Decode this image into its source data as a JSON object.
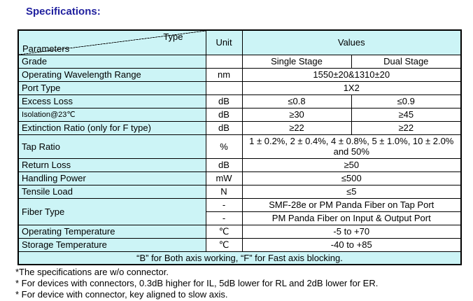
{
  "page": {
    "title": "Specifications:"
  },
  "colors": {
    "table_highlight": "#ccf4f6",
    "title_text": "#1f1f9e",
    "border": "#000000"
  },
  "table": {
    "header": {
      "type_label": "Type",
      "parameters_label": "Parameters",
      "unit_label": "Unit",
      "values_label": "Values"
    },
    "rows": [
      {
        "cells": [
          {
            "text": "Grade",
            "cls": "param",
            "name": "param-grade"
          },
          {
            "text": "",
            "cls": "unit",
            "name": "unit-grade"
          },
          {
            "text": "Single Stage",
            "cls": "val",
            "name": "value-grade-single"
          },
          {
            "text": "Dual Stage",
            "cls": "val",
            "name": "value-grade-dual"
          }
        ]
      },
      {
        "cells": [
          {
            "text": "Operating Wavelength Range",
            "cls": "param",
            "name": "param-operating-wavelength-range"
          },
          {
            "text": "nm",
            "cls": "unit",
            "name": "unit-operating-wavelength-range"
          },
          {
            "text": "1550±20&1310±20",
            "cls": "val",
            "colspan": 2,
            "name": "value-operating-wavelength-range"
          }
        ]
      },
      {
        "cells": [
          {
            "text": "Port Type",
            "cls": "param",
            "name": "param-port-type"
          },
          {
            "text": "",
            "cls": "unit",
            "name": "unit-port-type"
          },
          {
            "text": "1X2",
            "cls": "val",
            "colspan": 2,
            "name": "value-port-type"
          }
        ]
      },
      {
        "cells": [
          {
            "text": "Excess Loss",
            "cls": "param",
            "name": "param-excess-loss"
          },
          {
            "text": "dB",
            "cls": "unit",
            "name": "unit-excess-loss"
          },
          {
            "text": "≤0.8",
            "cls": "val",
            "name": "value-excess-loss-single"
          },
          {
            "text": "≤0.9",
            "cls": "val",
            "name": "value-excess-loss-dual"
          }
        ]
      },
      {
        "cells": [
          {
            "text": "Isolation@23℃",
            "cls": "param small",
            "name": "param-isolation"
          },
          {
            "text": "dB",
            "cls": "unit",
            "name": "unit-isolation"
          },
          {
            "text": "≥30",
            "cls": "val",
            "name": "value-isolation-single"
          },
          {
            "text": "≥45",
            "cls": "val",
            "name": "value-isolation-dual"
          }
        ]
      },
      {
        "cells": [
          {
            "text": "Extinction Ratio (only for F type)",
            "cls": "param",
            "name": "param-extinction-ratio"
          },
          {
            "text": "dB",
            "cls": "unit",
            "name": "unit-extinction-ratio"
          },
          {
            "text": "≥22",
            "cls": "val",
            "name": "value-extinction-ratio-single"
          },
          {
            "text": "≥22",
            "cls": "val",
            "name": "value-extinction-ratio-dual"
          }
        ]
      },
      {
        "tall": true,
        "cells": [
          {
            "text": "Tap Ratio",
            "cls": "param",
            "name": "param-tap-ratio"
          },
          {
            "text": "%",
            "cls": "unit",
            "name": "unit-tap-ratio"
          },
          {
            "text": "1 ± 0.2%, 2 ± 0.4%, 4 ± 0.8%, 5 ± 1.0%, 10 ± 2.0% and 50%",
            "cls": "val",
            "colspan": 2,
            "name": "value-tap-ratio"
          }
        ]
      },
      {
        "cells": [
          {
            "text": "Return Loss",
            "cls": "param",
            "name": "param-return-loss"
          },
          {
            "text": "dB",
            "cls": "unit",
            "name": "unit-return-loss"
          },
          {
            "text": "≥50",
            "cls": "val",
            "colspan": 2,
            "name": "value-return-loss"
          }
        ]
      },
      {
        "cells": [
          {
            "text": "Handling Power",
            "cls": "param",
            "name": "param-handling-power"
          },
          {
            "text": "mW",
            "cls": "unit",
            "name": "unit-handling-power"
          },
          {
            "text": "≤500",
            "cls": "val",
            "colspan": 2,
            "name": "value-handling-power"
          }
        ]
      },
      {
        "cells": [
          {
            "text": "Tensile Load",
            "cls": "param",
            "name": "param-tensile-load"
          },
          {
            "text": "N",
            "cls": "unit",
            "name": "unit-tensile-load"
          },
          {
            "text": "≤5",
            "cls": "val",
            "colspan": 2,
            "name": "value-tensile-load"
          }
        ]
      },
      {
        "cells": [
          {
            "text": "Fiber Type",
            "cls": "param",
            "rowspan": 2,
            "name": "param-fiber-type"
          },
          {
            "text": "-",
            "cls": "unit",
            "name": "unit-fiber-type-tap"
          },
          {
            "text": "SMF-28e or PM Panda Fiber on Tap Port",
            "cls": "val",
            "colspan": 2,
            "name": "value-fiber-type-tap"
          }
        ]
      },
      {
        "cells": [
          {
            "text": "-",
            "cls": "unit",
            "name": "unit-fiber-type-io"
          },
          {
            "text": "PM Panda Fiber on Input & Output Port",
            "cls": "val",
            "colspan": 2,
            "name": "value-fiber-type-io"
          }
        ]
      },
      {
        "cells": [
          {
            "text": "Operating Temperature",
            "cls": "param",
            "name": "param-operating-temperature"
          },
          {
            "text": "℃",
            "cls": "unit",
            "name": "unit-operating-temperature"
          },
          {
            "text": "-5 to +70",
            "cls": "val",
            "colspan": 2,
            "name": "value-operating-temperature"
          }
        ]
      },
      {
        "cells": [
          {
            "text": "Storage Temperature",
            "cls": "param",
            "name": "param-storage-temperature"
          },
          {
            "text": "℃",
            "cls": "unit",
            "name": "unit-storage-temperature"
          },
          {
            "text": "-40 to +85",
            "cls": "val",
            "colspan": 2,
            "name": "value-storage-temperature"
          }
        ]
      },
      {
        "cells": [
          {
            "text": "“B” for Both axis working, “F” for Fast axis blocking.",
            "cls": "footer-note",
            "colspan": 4,
            "name": "table-footer-note"
          }
        ]
      }
    ]
  },
  "notes": [
    "*The specifications are w/o connector.",
    "* For devices with connectors, 0.3dB higher for IL, 5dB lower for RL and 2dB lower for ER.",
    "* For device with connector, key aligned to slow axis."
  ]
}
